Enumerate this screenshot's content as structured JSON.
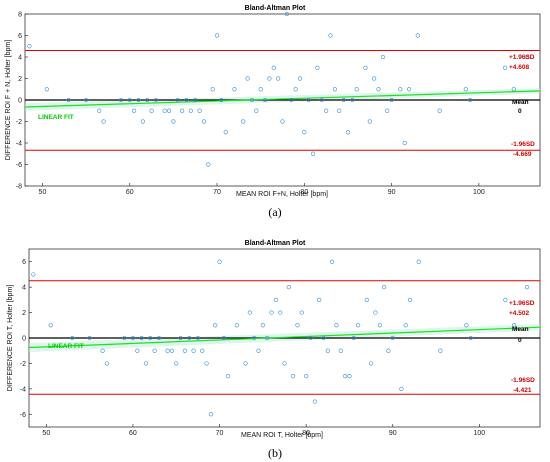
{
  "chart_data": [
    {
      "type": "scatter",
      "title": "Bland-Altman Plot",
      "xlabel": "MEAN ROI F+N, Holter [bpm]",
      "ylabel": "DIFFERENCE ROI F + N, Holter [bpm]",
      "xlim": [
        48,
        107
      ],
      "ylim": [
        -8,
        8
      ],
      "xticks": [
        50,
        60,
        70,
        80,
        90,
        100
      ],
      "yticks": [
        -8,
        -6,
        -4,
        -2,
        0,
        2,
        4,
        6,
        8
      ],
      "upper_loa": 4.608,
      "lower_loa": -4.669,
      "mean_diff": 0,
      "upper_label": "+1.96SD",
      "upper_value_label": "+4.608",
      "lower_label": "-1.96SD",
      "lower_value_label": "-4.669",
      "mean_label": "Mean",
      "mean_value_label": "0",
      "fit_label": "LINEAR FIT",
      "fit": {
        "x": [
          48,
          107
        ],
        "y": [
          -0.65,
          0.85
        ]
      },
      "grid": false,
      "caption": "(a)",
      "points": [
        [
          48.5,
          5
        ],
        [
          50.5,
          1
        ],
        [
          53,
          0
        ],
        [
          55,
          0
        ],
        [
          56.5,
          -1
        ],
        [
          57,
          -2
        ],
        [
          59,
          0
        ],
        [
          60,
          0
        ],
        [
          60.5,
          -1
        ],
        [
          61,
          0
        ],
        [
          61.5,
          -2
        ],
        [
          62,
          0
        ],
        [
          62.5,
          -1
        ],
        [
          63,
          0
        ],
        [
          64,
          -1
        ],
        [
          64.5,
          -1
        ],
        [
          65,
          -2
        ],
        [
          65.5,
          0
        ],
        [
          66,
          -1
        ],
        [
          66.5,
          0
        ],
        [
          67,
          -1
        ],
        [
          67.5,
          0
        ],
        [
          68,
          -1
        ],
        [
          68.5,
          -2
        ],
        [
          69,
          -6
        ],
        [
          69.5,
          1
        ],
        [
          70,
          6
        ],
        [
          70.5,
          0
        ],
        [
          71,
          -3
        ],
        [
          72,
          1
        ],
        [
          73,
          -2
        ],
        [
          73.5,
          2
        ],
        [
          74,
          0
        ],
        [
          74.5,
          -1
        ],
        [
          75,
          1
        ],
        [
          75.5,
          0
        ],
        [
          76,
          2
        ],
        [
          76.5,
          3
        ],
        [
          77,
          2
        ],
        [
          77.5,
          -2
        ],
        [
          78,
          8
        ],
        [
          78.5,
          0
        ],
        [
          79,
          1
        ],
        [
          79.5,
          2
        ],
        [
          80,
          -3
        ],
        [
          80.5,
          0
        ],
        [
          81,
          -5
        ],
        [
          81.5,
          3
        ],
        [
          82,
          0
        ],
        [
          82.5,
          -1
        ],
        [
          83,
          6
        ],
        [
          83.5,
          1
        ],
        [
          84,
          -1
        ],
        [
          84.5,
          0
        ],
        [
          85,
          -3
        ],
        [
          85.5,
          0
        ],
        [
          86,
          1
        ],
        [
          87,
          3
        ],
        [
          87.5,
          -2
        ],
        [
          88,
          2
        ],
        [
          88.5,
          1
        ],
        [
          89,
          4
        ],
        [
          89.5,
          -1
        ],
        [
          90,
          0
        ],
        [
          91,
          1
        ],
        [
          91.5,
          -4
        ],
        [
          92,
          1
        ],
        [
          93,
          6
        ],
        [
          95.5,
          -1
        ],
        [
          98.5,
          1
        ],
        [
          99,
          0
        ],
        [
          103,
          3
        ],
        [
          104,
          1
        ],
        [
          105.5,
          4
        ]
      ]
    },
    {
      "type": "scatter",
      "title": "Bland-Altman Plot",
      "xlabel": "MEAN ROI T, Holter [bpm]",
      "ylabel": "DIFFERENCE ROI T, Holter [bpm]",
      "xlim": [
        48,
        107
      ],
      "ylim": [
        -7,
        7
      ],
      "xticks": [
        50,
        60,
        70,
        80,
        90,
        100
      ],
      "yticks": [
        -6,
        -4,
        -2,
        0,
        2,
        4,
        6
      ],
      "upper_loa": 4.502,
      "lower_loa": -4.421,
      "mean_diff": 0,
      "upper_label": "+1.96SD",
      "upper_value_label": "+4.502",
      "lower_label": "-1.96SD",
      "lower_value_label": "-4.421",
      "mean_label": "Mean",
      "mean_value_label": "0",
      "fit_label": "LINEAR FIT",
      "fit": {
        "x": [
          48,
          107
        ],
        "y": [
          -0.75,
          0.85
        ]
      },
      "grid": false,
      "caption": "(b)",
      "points": [
        [
          48.5,
          5
        ],
        [
          50.5,
          1
        ],
        [
          53,
          0
        ],
        [
          55,
          0
        ],
        [
          56.5,
          -1
        ],
        [
          57,
          -2
        ],
        [
          59,
          0
        ],
        [
          60,
          0
        ],
        [
          60.5,
          -1
        ],
        [
          61,
          0
        ],
        [
          61.5,
          -2
        ],
        [
          62,
          0
        ],
        [
          62.5,
          -1
        ],
        [
          63,
          0
        ],
        [
          64,
          -1
        ],
        [
          64.5,
          -1
        ],
        [
          65,
          -2
        ],
        [
          65.5,
          0
        ],
        [
          66,
          -1
        ],
        [
          66.5,
          0
        ],
        [
          67,
          -1
        ],
        [
          67.5,
          0
        ],
        [
          68,
          -1
        ],
        [
          68.5,
          -2
        ],
        [
          69,
          -6
        ],
        [
          69.5,
          1
        ],
        [
          70,
          6
        ],
        [
          70.5,
          0
        ],
        [
          71,
          -3
        ],
        [
          72,
          1
        ],
        [
          73,
          -2
        ],
        [
          73.5,
          2
        ],
        [
          74,
          0
        ],
        [
          74.5,
          -1
        ],
        [
          75,
          1
        ],
        [
          75.5,
          0
        ],
        [
          76,
          2
        ],
        [
          76.5,
          3
        ],
        [
          77,
          2
        ],
        [
          77.5,
          -2
        ],
        [
          78,
          4
        ],
        [
          78.5,
          -3
        ],
        [
          79,
          1
        ],
        [
          79.5,
          2
        ],
        [
          80,
          -3
        ],
        [
          80.5,
          0
        ],
        [
          81,
          -5
        ],
        [
          81.5,
          3
        ],
        [
          82,
          0
        ],
        [
          82.5,
          -1
        ],
        [
          83,
          6
        ],
        [
          83.5,
          1
        ],
        [
          84,
          -1
        ],
        [
          84.5,
          -3
        ],
        [
          85,
          -3
        ],
        [
          85.5,
          0
        ],
        [
          86,
          1
        ],
        [
          87,
          3
        ],
        [
          87.5,
          -2
        ],
        [
          88,
          2
        ],
        [
          88.5,
          1
        ],
        [
          89,
          4
        ],
        [
          89.5,
          -1
        ],
        [
          90,
          0
        ],
        [
          91,
          -4
        ],
        [
          91.5,
          1
        ],
        [
          92,
          3
        ],
        [
          93,
          6
        ],
        [
          95.5,
          -1
        ],
        [
          98.5,
          1
        ],
        [
          99,
          0
        ],
        [
          103,
          3
        ],
        [
          104,
          1
        ],
        [
          105.5,
          4
        ]
      ]
    }
  ]
}
